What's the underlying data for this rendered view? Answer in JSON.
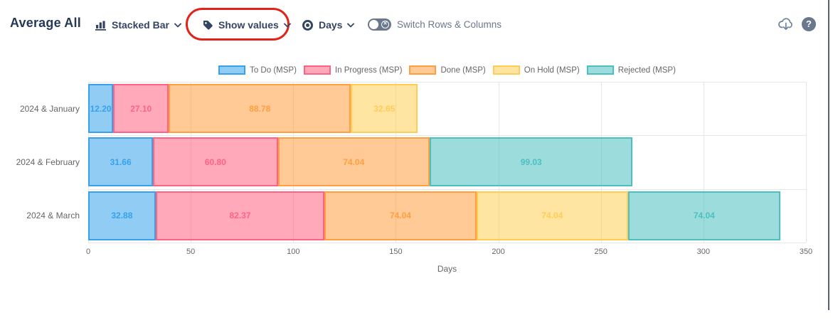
{
  "window": {
    "title": "Average All"
  },
  "toolbar": {
    "chart_type_label": "Stacked Bar",
    "show_values_label": "Show values",
    "unit_label": "Days",
    "switch_rows_columns_label": "Switch Rows & Columns",
    "help_glyph": "?"
  },
  "icons": {
    "chart_type": "stacked-bar-icon",
    "show_values": "tag-icon",
    "unit": "record-eye-icon",
    "export": "cloud-download-icon",
    "help": "question-mark-icon"
  },
  "colors": {
    "title_navy": "#253858",
    "toolbar_navy": "#344563",
    "muted_gray_blue": "#6b778c",
    "highlight_red": "#e2231a",
    "axis_text": "#666666",
    "gridline": "#e7e7e7"
  },
  "chart_data": {
    "type": "bar",
    "orientation": "horizontal",
    "stacked": true,
    "categories": [
      "2024 & January",
      "2024 & February",
      "2024 & March"
    ],
    "series": [
      {
        "name": "To Do (MSP)",
        "border_color": "#36A2EB",
        "fill_color": "rgba(54,162,235,0.55)",
        "values": [
          12.2,
          31.66,
          32.88
        ]
      },
      {
        "name": "In Progress (MSP)",
        "border_color": "#FF6384",
        "fill_color": "rgba(255,99,132,0.55)",
        "values": [
          27.1,
          60.8,
          82.37
        ]
      },
      {
        "name": "Done (MSP)",
        "border_color": "#FF9F40",
        "fill_color": "rgba(255,159,64,0.55)",
        "values": [
          88.78,
          74.04,
          74.04
        ]
      },
      {
        "name": "On Hold (MSP)",
        "border_color": "#FFCD56",
        "fill_color": "rgba(255,205,86,0.55)",
        "values": [
          32.65,
          0,
          74.04
        ]
      },
      {
        "name": "Rejected (MSP)",
        "border_color": "#4BC0C0",
        "fill_color": "rgba(75,192,192,0.55)",
        "values": [
          0,
          99.03,
          74.04
        ]
      }
    ],
    "xlabel": "Days",
    "xlim": [
      0,
      350
    ],
    "xticks": [
      0,
      50,
      100,
      150,
      200,
      250,
      300,
      350
    ],
    "grid": true,
    "legend_position": "top",
    "value_labels_visible": true,
    "value_decimals": 2
  }
}
